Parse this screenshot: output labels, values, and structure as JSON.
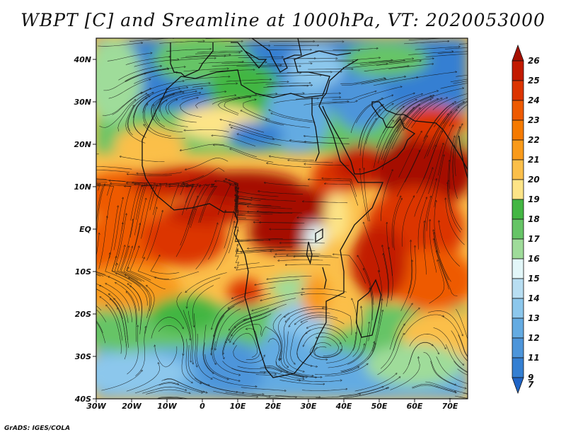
{
  "title": "WBPT [C] and Sreamline at 1000hPa, VT: 2020053000",
  "credit": "GrADS: IGES/COLA",
  "map": {
    "variable": "Wet-bulb potential temperature with streamlines",
    "level": "1000hPa",
    "valid_time": "2020053000",
    "lon_range": [
      -30,
      75
    ],
    "lat_range": [
      -40,
      45
    ],
    "lat_ticks": [
      {
        "value": 40,
        "label": "40N"
      },
      {
        "value": 30,
        "label": "30N"
      },
      {
        "value": 20,
        "label": "20N"
      },
      {
        "value": 10,
        "label": "10N"
      },
      {
        "value": 0,
        "label": "EQ"
      },
      {
        "value": -10,
        "label": "10S"
      },
      {
        "value": -20,
        "label": "20S"
      },
      {
        "value": -30,
        "label": "30S"
      },
      {
        "value": -40,
        "label": "40S"
      }
    ],
    "lon_ticks": [
      {
        "value": -30,
        "label": "30W"
      },
      {
        "value": -20,
        "label": "20W"
      },
      {
        "value": -10,
        "label": "10W"
      },
      {
        "value": 0,
        "label": "0"
      },
      {
        "value": 10,
        "label": "10E"
      },
      {
        "value": 20,
        "label": "20E"
      },
      {
        "value": 30,
        "label": "30E"
      },
      {
        "value": 40,
        "label": "40E"
      },
      {
        "value": 50,
        "label": "50E"
      },
      {
        "value": 60,
        "label": "60E"
      },
      {
        "value": 70,
        "label": "70E"
      }
    ]
  },
  "colorbar": {
    "levels": [
      {
        "label": "26",
        "color": "#a50f00"
      },
      {
        "label": "25",
        "color": "#c21a00"
      },
      {
        "label": "24",
        "color": "#dc3400"
      },
      {
        "label": "23",
        "color": "#ee5a00"
      },
      {
        "label": "22",
        "color": "#f57a00"
      },
      {
        "label": "21",
        "color": "#f99a1a"
      },
      {
        "label": "20",
        "color": "#fbbf4a"
      },
      {
        "label": "19",
        "color": "#fde487"
      },
      {
        "label": "18",
        "color": "#43b643"
      },
      {
        "label": "17",
        "color": "#66c466"
      },
      {
        "label": "16",
        "color": "#9fdc9a"
      },
      {
        "label": "15",
        "color": "#e3f7f9"
      },
      {
        "label": "14",
        "color": "#b8def2"
      },
      {
        "label": "13",
        "color": "#8cc7ec"
      },
      {
        "label": "12",
        "color": "#64abe2"
      },
      {
        "label": "11",
        "color": "#4d95da"
      },
      {
        "label": "9",
        "color": "#347fd2"
      },
      {
        "label": "7",
        "color": "#1f64c6"
      }
    ]
  }
}
